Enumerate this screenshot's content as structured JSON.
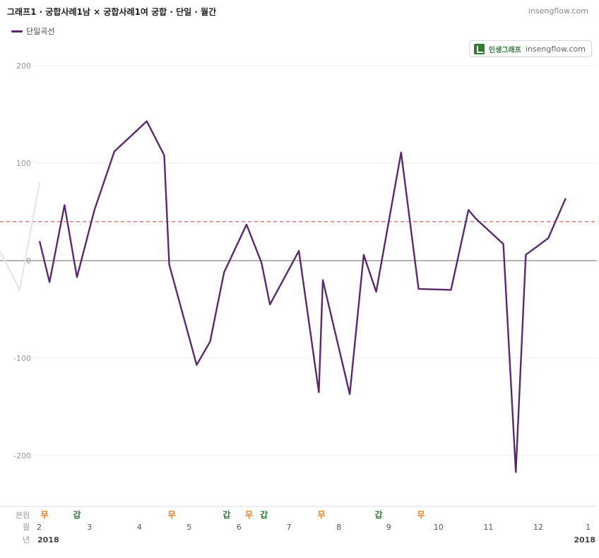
{
  "header": {
    "title": "그래프1 · 궁합사례1남 × 궁합사례1여 궁합 · 단일 · 월간",
    "site": "insengflow.com"
  },
  "legend": {
    "label": "단일곡선"
  },
  "badge": {
    "brand": "인생그래프",
    "url": "insengflow.com"
  },
  "colors": {
    "line": "#5b2a6e",
    "reference": "#d9534f",
    "zero": "#888888",
    "grid": "#eeeeee",
    "marker_good": "#2e7d32",
    "marker_neutral": "#e67e22"
  },
  "chart_data": {
    "type": "line",
    "ylim": [
      -250,
      200
    ],
    "yticks": [
      200,
      100,
      0,
      -100,
      -200
    ],
    "reference_line": 40,
    "series": [
      {
        "name": "단일곡선",
        "x": [
          2.0,
          2.2,
          2.5,
          2.75,
          3.1,
          3.5,
          4.15,
          4.5,
          4.6,
          5.15,
          5.42,
          5.7,
          6.15,
          6.45,
          6.62,
          7.2,
          7.6,
          7.68,
          8.22,
          8.5,
          8.75,
          9.25,
          9.6,
          10.25,
          10.6,
          10.75,
          11.3,
          11.55,
          11.75,
          12.2,
          12.55
        ],
        "values": [
          20,
          -22,
          57,
          -17,
          52,
          112,
          143,
          108,
          -4,
          -107,
          -83,
          -12,
          37,
          -2,
          -45,
          10,
          -135,
          -20,
          -137,
          6,
          -32,
          111,
          -29,
          -30,
          52,
          43,
          17,
          -217,
          6,
          23,
          64
        ]
      },
      {
        "name": "",
        "x": [
          1.2,
          1.6,
          2.0
        ],
        "values": [
          10,
          -30,
          80
        ]
      }
    ],
    "x_axis": {
      "row_labels": {
        "markers": "본원",
        "month": "월",
        "year": "년"
      },
      "months": [
        "2",
        "3",
        "4",
        "5",
        "6",
        "7",
        "8",
        "9",
        "10",
        "11",
        "12",
        "1"
      ],
      "month_positions": [
        2,
        3,
        4,
        5,
        6,
        7,
        8,
        9,
        10,
        11,
        12,
        13
      ],
      "year_left": "2018",
      "year_right": "2018"
    },
    "markers": [
      {
        "label": "무",
        "x": 2.05,
        "kind": "neutral"
      },
      {
        "label": "갑",
        "x": 2.7,
        "kind": "good"
      },
      {
        "label": "무",
        "x": 4.6,
        "kind": "neutral"
      },
      {
        "label": "갑",
        "x": 5.7,
        "kind": "good"
      },
      {
        "label": "무",
        "x": 6.15,
        "kind": "neutral"
      },
      {
        "label": "갑",
        "x": 6.45,
        "kind": "good"
      },
      {
        "label": "무",
        "x": 7.6,
        "kind": "neutral"
      },
      {
        "label": "갑",
        "x": 8.75,
        "kind": "good"
      },
      {
        "label": "무",
        "x": 9.6,
        "kind": "neutral"
      }
    ]
  }
}
